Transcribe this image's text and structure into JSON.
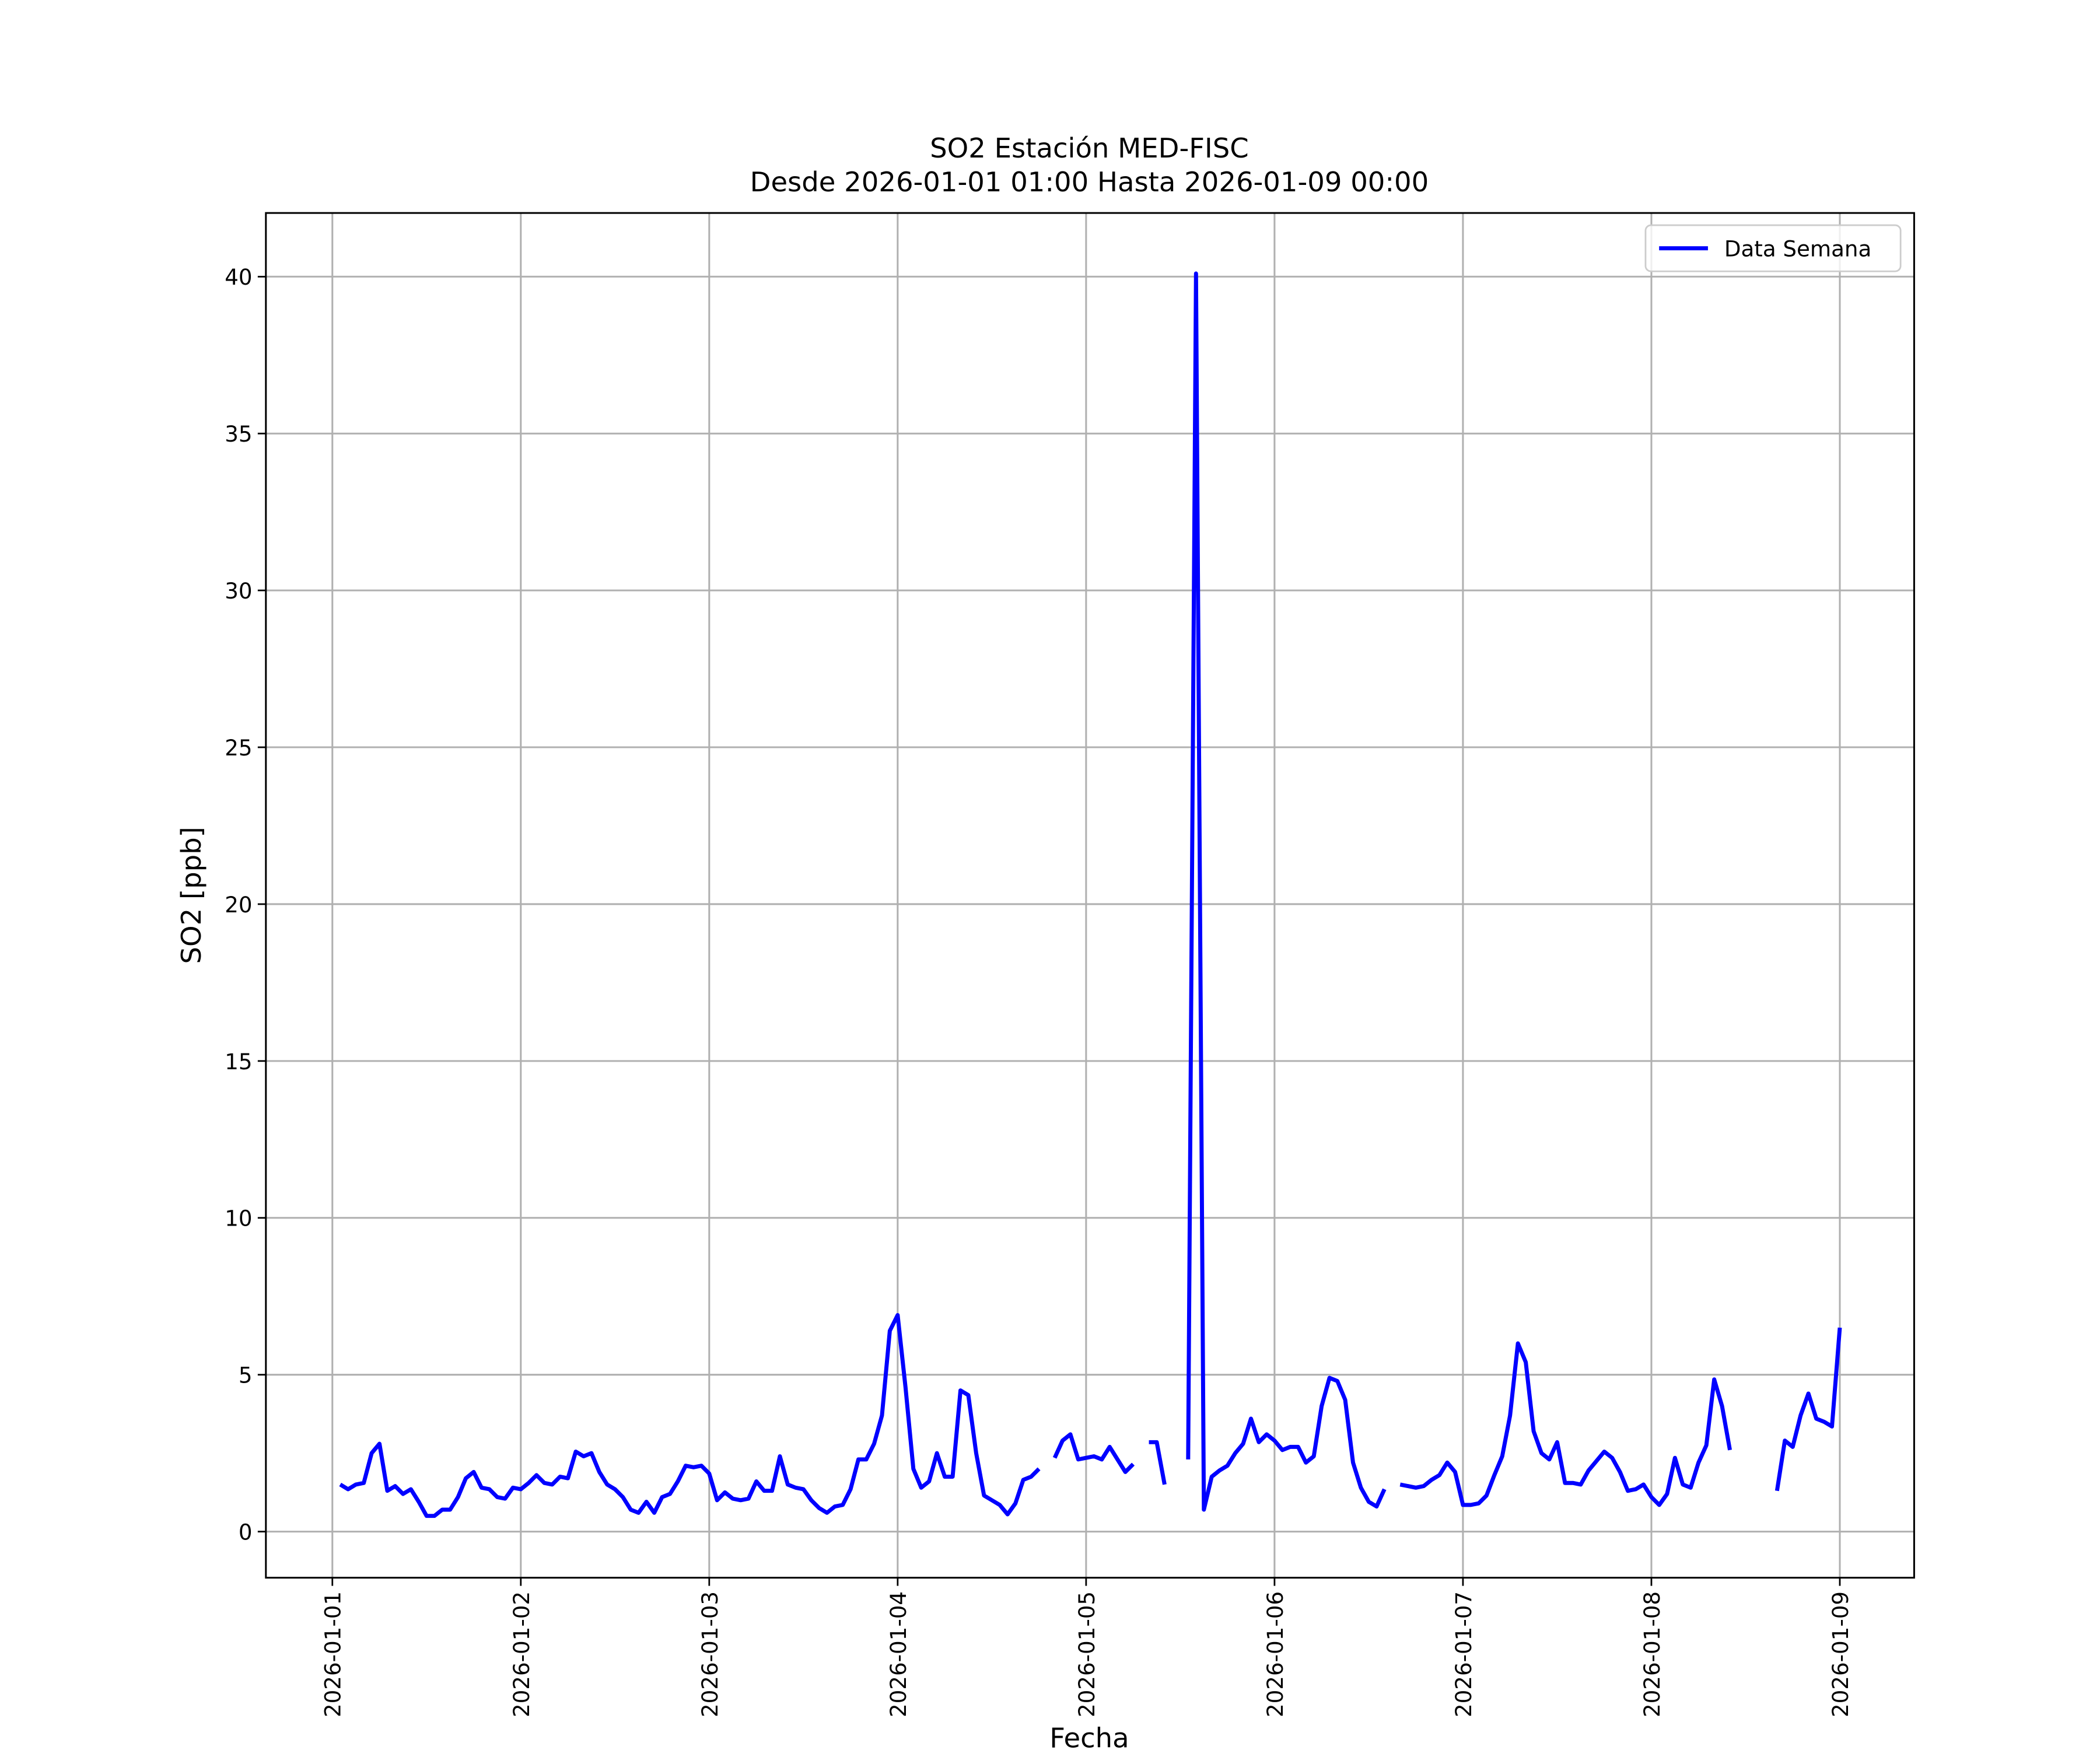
{
  "chart_data": {
    "type": "line",
    "title": "SO2 Estación MED-FISC",
    "subtitle": "Desde 2026-01-01 01:00 Hasta 2026-01-09 00:00",
    "xlabel": "Fecha",
    "ylabel": "SO2 [ppb]",
    "legend": "upper right",
    "grid": true,
    "xlim": [
      "2025-12-31 15:32",
      "2026-01-09 09:28"
    ],
    "xticks": [
      "2026-01-01",
      "2026-01-02",
      "2026-01-03",
      "2026-01-04",
      "2026-01-05",
      "2026-01-06",
      "2026-01-07",
      "2026-01-08",
      "2026-01-09"
    ],
    "ylim": [
      -1.47,
      42.03
    ],
    "yticks": [
      0,
      5,
      10,
      15,
      20,
      25,
      30,
      35,
      40
    ],
    "x": [
      "2026-01-01 01:00",
      "2026-01-01 02:00",
      "2026-01-01 03:00",
      "2026-01-01 04:00",
      "2026-01-01 05:00",
      "2026-01-01 06:00",
      "2026-01-01 07:00",
      "2026-01-01 08:00",
      "2026-01-01 09:00",
      "2026-01-01 10:00",
      "2026-01-01 11:00",
      "2026-01-01 12:00",
      "2026-01-01 13:00",
      "2026-01-01 14:00",
      "2026-01-01 15:00",
      "2026-01-01 16:00",
      "2026-01-01 17:00",
      "2026-01-01 18:00",
      "2026-01-01 19:00",
      "2026-01-01 20:00",
      "2026-01-01 21:00",
      "2026-01-01 22:00",
      "2026-01-01 23:00",
      "2026-01-02 00:00",
      "2026-01-02 01:00",
      "2026-01-02 02:00",
      "2026-01-02 03:00",
      "2026-01-02 04:00",
      "2026-01-02 05:00",
      "2026-01-02 06:00",
      "2026-01-02 07:00",
      "2026-01-02 08:00",
      "2026-01-02 09:00",
      "2026-01-02 10:00",
      "2026-01-02 11:00",
      "2026-01-02 12:00",
      "2026-01-02 13:00",
      "2026-01-02 14:00",
      "2026-01-02 15:00",
      "2026-01-02 16:00",
      "2026-01-02 17:00",
      "2026-01-02 18:00",
      "2026-01-02 19:00",
      "2026-01-02 20:00",
      "2026-01-02 21:00",
      "2026-01-02 22:00",
      "2026-01-02 23:00",
      "2026-01-03 00:00",
      "2026-01-03 01:00",
      "2026-01-03 02:00",
      "2026-01-03 03:00",
      "2026-01-03 04:00",
      "2026-01-03 05:00",
      "2026-01-03 06:00",
      "2026-01-03 07:00",
      "2026-01-03 08:00",
      "2026-01-03 09:00",
      "2026-01-03 10:00",
      "2026-01-03 11:00",
      "2026-01-03 12:00",
      "2026-01-03 13:00",
      "2026-01-03 14:00",
      "2026-01-03 15:00",
      "2026-01-03 16:00",
      "2026-01-03 17:00",
      "2026-01-03 18:00",
      "2026-01-03 19:00",
      "2026-01-03 20:00",
      "2026-01-03 21:00",
      "2026-01-03 22:00",
      "2026-01-03 23:00",
      "2026-01-04 00:00",
      "2026-01-04 01:00",
      "2026-01-04 02:00",
      "2026-01-04 03:00",
      "2026-01-04 04:00",
      "2026-01-04 05:00",
      "2026-01-04 06:00",
      "2026-01-04 07:00",
      "2026-01-04 08:00",
      "2026-01-04 09:00",
      "2026-01-04 10:00",
      "2026-01-04 11:00",
      "2026-01-04 12:00",
      "2026-01-04 13:00",
      "2026-01-04 14:00",
      "2026-01-04 15:00",
      "2026-01-04 16:00",
      "2026-01-04 17:00",
      "2026-01-04 18:00",
      "2026-01-04 19:00",
      "2026-01-04 20:00",
      "2026-01-04 21:00",
      "2026-01-04 22:00",
      "2026-01-04 23:00",
      "2026-01-05 00:00",
      "2026-01-05 01:00",
      "2026-01-05 02:00",
      "2026-01-05 03:00",
      "2026-01-05 04:00",
      "2026-01-05 05:00",
      "2026-01-05 06:00",
      "2026-01-05 07:00",
      "2026-01-05 08:00",
      "2026-01-05 09:00",
      "2026-01-05 10:00",
      "2026-01-05 11:00",
      "2026-01-05 12:00",
      "2026-01-05 13:00",
      "2026-01-05 14:00",
      "2026-01-05 15:00",
      "2026-01-05 16:00",
      "2026-01-05 17:00",
      "2026-01-05 18:00",
      "2026-01-05 19:00",
      "2026-01-05 20:00",
      "2026-01-05 21:00",
      "2026-01-05 22:00",
      "2026-01-05 23:00",
      "2026-01-06 00:00",
      "2026-01-06 01:00",
      "2026-01-06 02:00",
      "2026-01-06 03:00",
      "2026-01-06 04:00",
      "2026-01-06 05:00",
      "2026-01-06 06:00",
      "2026-01-06 07:00",
      "2026-01-06 08:00",
      "2026-01-06 09:00",
      "2026-01-06 10:00",
      "2026-01-06 11:00",
      "2026-01-06 12:00",
      "2026-01-06 13:00",
      "2026-01-06 14:00",
      "2026-01-06 15:00",
      "2026-01-06 16:00",
      "2026-01-06 17:00",
      "2026-01-06 18:00",
      "2026-01-06 19:00",
      "2026-01-06 20:00",
      "2026-01-06 21:00",
      "2026-01-06 22:00",
      "2026-01-06 23:00",
      "2026-01-07 00:00",
      "2026-01-07 01:00",
      "2026-01-07 02:00",
      "2026-01-07 03:00",
      "2026-01-07 04:00",
      "2026-01-07 05:00",
      "2026-01-07 06:00",
      "2026-01-07 07:00",
      "2026-01-07 08:00",
      "2026-01-07 09:00",
      "2026-01-07 10:00",
      "2026-01-07 11:00",
      "2026-01-07 12:00",
      "2026-01-07 13:00",
      "2026-01-07 14:00",
      "2026-01-07 15:00",
      "2026-01-07 16:00",
      "2026-01-07 17:00",
      "2026-01-07 18:00",
      "2026-01-07 19:00",
      "2026-01-07 20:00",
      "2026-01-07 21:00",
      "2026-01-07 22:00",
      "2026-01-07 23:00",
      "2026-01-08 00:00",
      "2026-01-08 01:00",
      "2026-01-08 02:00",
      "2026-01-08 03:00",
      "2026-01-08 04:00",
      "2026-01-08 05:00",
      "2026-01-08 06:00",
      "2026-01-08 07:00",
      "2026-01-08 08:00",
      "2026-01-08 09:00",
      "2026-01-08 10:00",
      "2026-01-08 11:00",
      "2026-01-08 12:00",
      "2026-01-08 13:00",
      "2026-01-08 14:00",
      "2026-01-08 15:00",
      "2026-01-08 16:00",
      "2026-01-08 17:00",
      "2026-01-08 18:00",
      "2026-01-08 19:00",
      "2026-01-08 20:00",
      "2026-01-08 21:00",
      "2026-01-08 22:00",
      "2026-01-08 23:00",
      "2026-01-09 00:00"
    ],
    "series": [
      {
        "name": "Data Semana",
        "color": "#0000ff",
        "values": [
          1.5,
          1.35,
          1.5,
          1.55,
          2.5,
          2.8,
          1.3,
          1.45,
          1.2,
          1.35,
          0.95,
          0.5,
          0.5,
          0.7,
          0.7,
          1.1,
          1.7,
          1.9,
          1.4,
          1.35,
          1.1,
          1.05,
          1.4,
          1.35,
          1.55,
          1.8,
          1.55,
          1.5,
          1.75,
          1.7,
          2.55,
          2.4,
          2.5,
          1.9,
          1.5,
          1.35,
          1.1,
          0.7,
          0.6,
          0.95,
          0.6,
          1.1,
          1.2,
          1.6,
          2.1,
          2.05,
          2.1,
          1.85,
          1.0,
          1.25,
          1.05,
          1.0,
          1.05,
          1.6,
          1.3,
          1.3,
          2.4,
          1.5,
          1.4,
          1.35,
          1.0,
          0.75,
          0.6,
          0.8,
          0.85,
          1.35,
          2.3,
          2.3,
          2.8,
          3.7,
          6.4,
          6.9,
          4.6,
          2.0,
          1.4,
          1.6,
          2.5,
          1.75,
          1.75,
          4.5,
          4.35,
          2.5,
          1.15,
          1.0,
          0.85,
          0.55,
          0.9,
          1.65,
          1.75,
          2.0,
          null,
          2.35,
          2.9,
          3.1,
          2.3,
          2.35,
          2.4,
          2.3,
          2.7,
          2.3,
          1.9,
          2.15,
          null,
          2.85,
          2.85,
          1.5,
          null,
          null,
          2.3,
          40.1,
          0.7,
          1.75,
          1.95,
          2.1,
          2.5,
          2.8,
          3.6,
          2.85,
          3.1,
          2.9,
          2.6,
          2.7,
          2.7,
          2.2,
          2.4,
          4.0,
          4.9,
          4.8,
          4.2,
          2.2,
          1.4,
          0.95,
          0.8,
          1.35,
          null,
          1.5,
          1.45,
          1.4,
          1.45,
          1.65,
          1.8,
          2.2,
          1.9,
          0.85,
          0.85,
          0.9,
          1.15,
          1.8,
          2.4,
          3.7,
          6.0,
          5.4,
          3.2,
          2.5,
          2.3,
          2.85,
          1.55,
          1.55,
          1.5,
          1.95,
          2.25,
          2.55,
          2.35,
          1.9,
          1.3,
          1.35,
          1.5,
          1.1,
          0.85,
          1.2,
          2.35,
          1.5,
          1.4,
          2.2,
          2.75,
          4.85,
          4.0,
          2.6,
          null,
          null,
          null,
          null,
          null,
          1.3,
          2.9,
          2.7,
          3.7,
          4.4,
          3.6,
          3.5,
          3.35,
          6.5
        ]
      }
    ]
  }
}
